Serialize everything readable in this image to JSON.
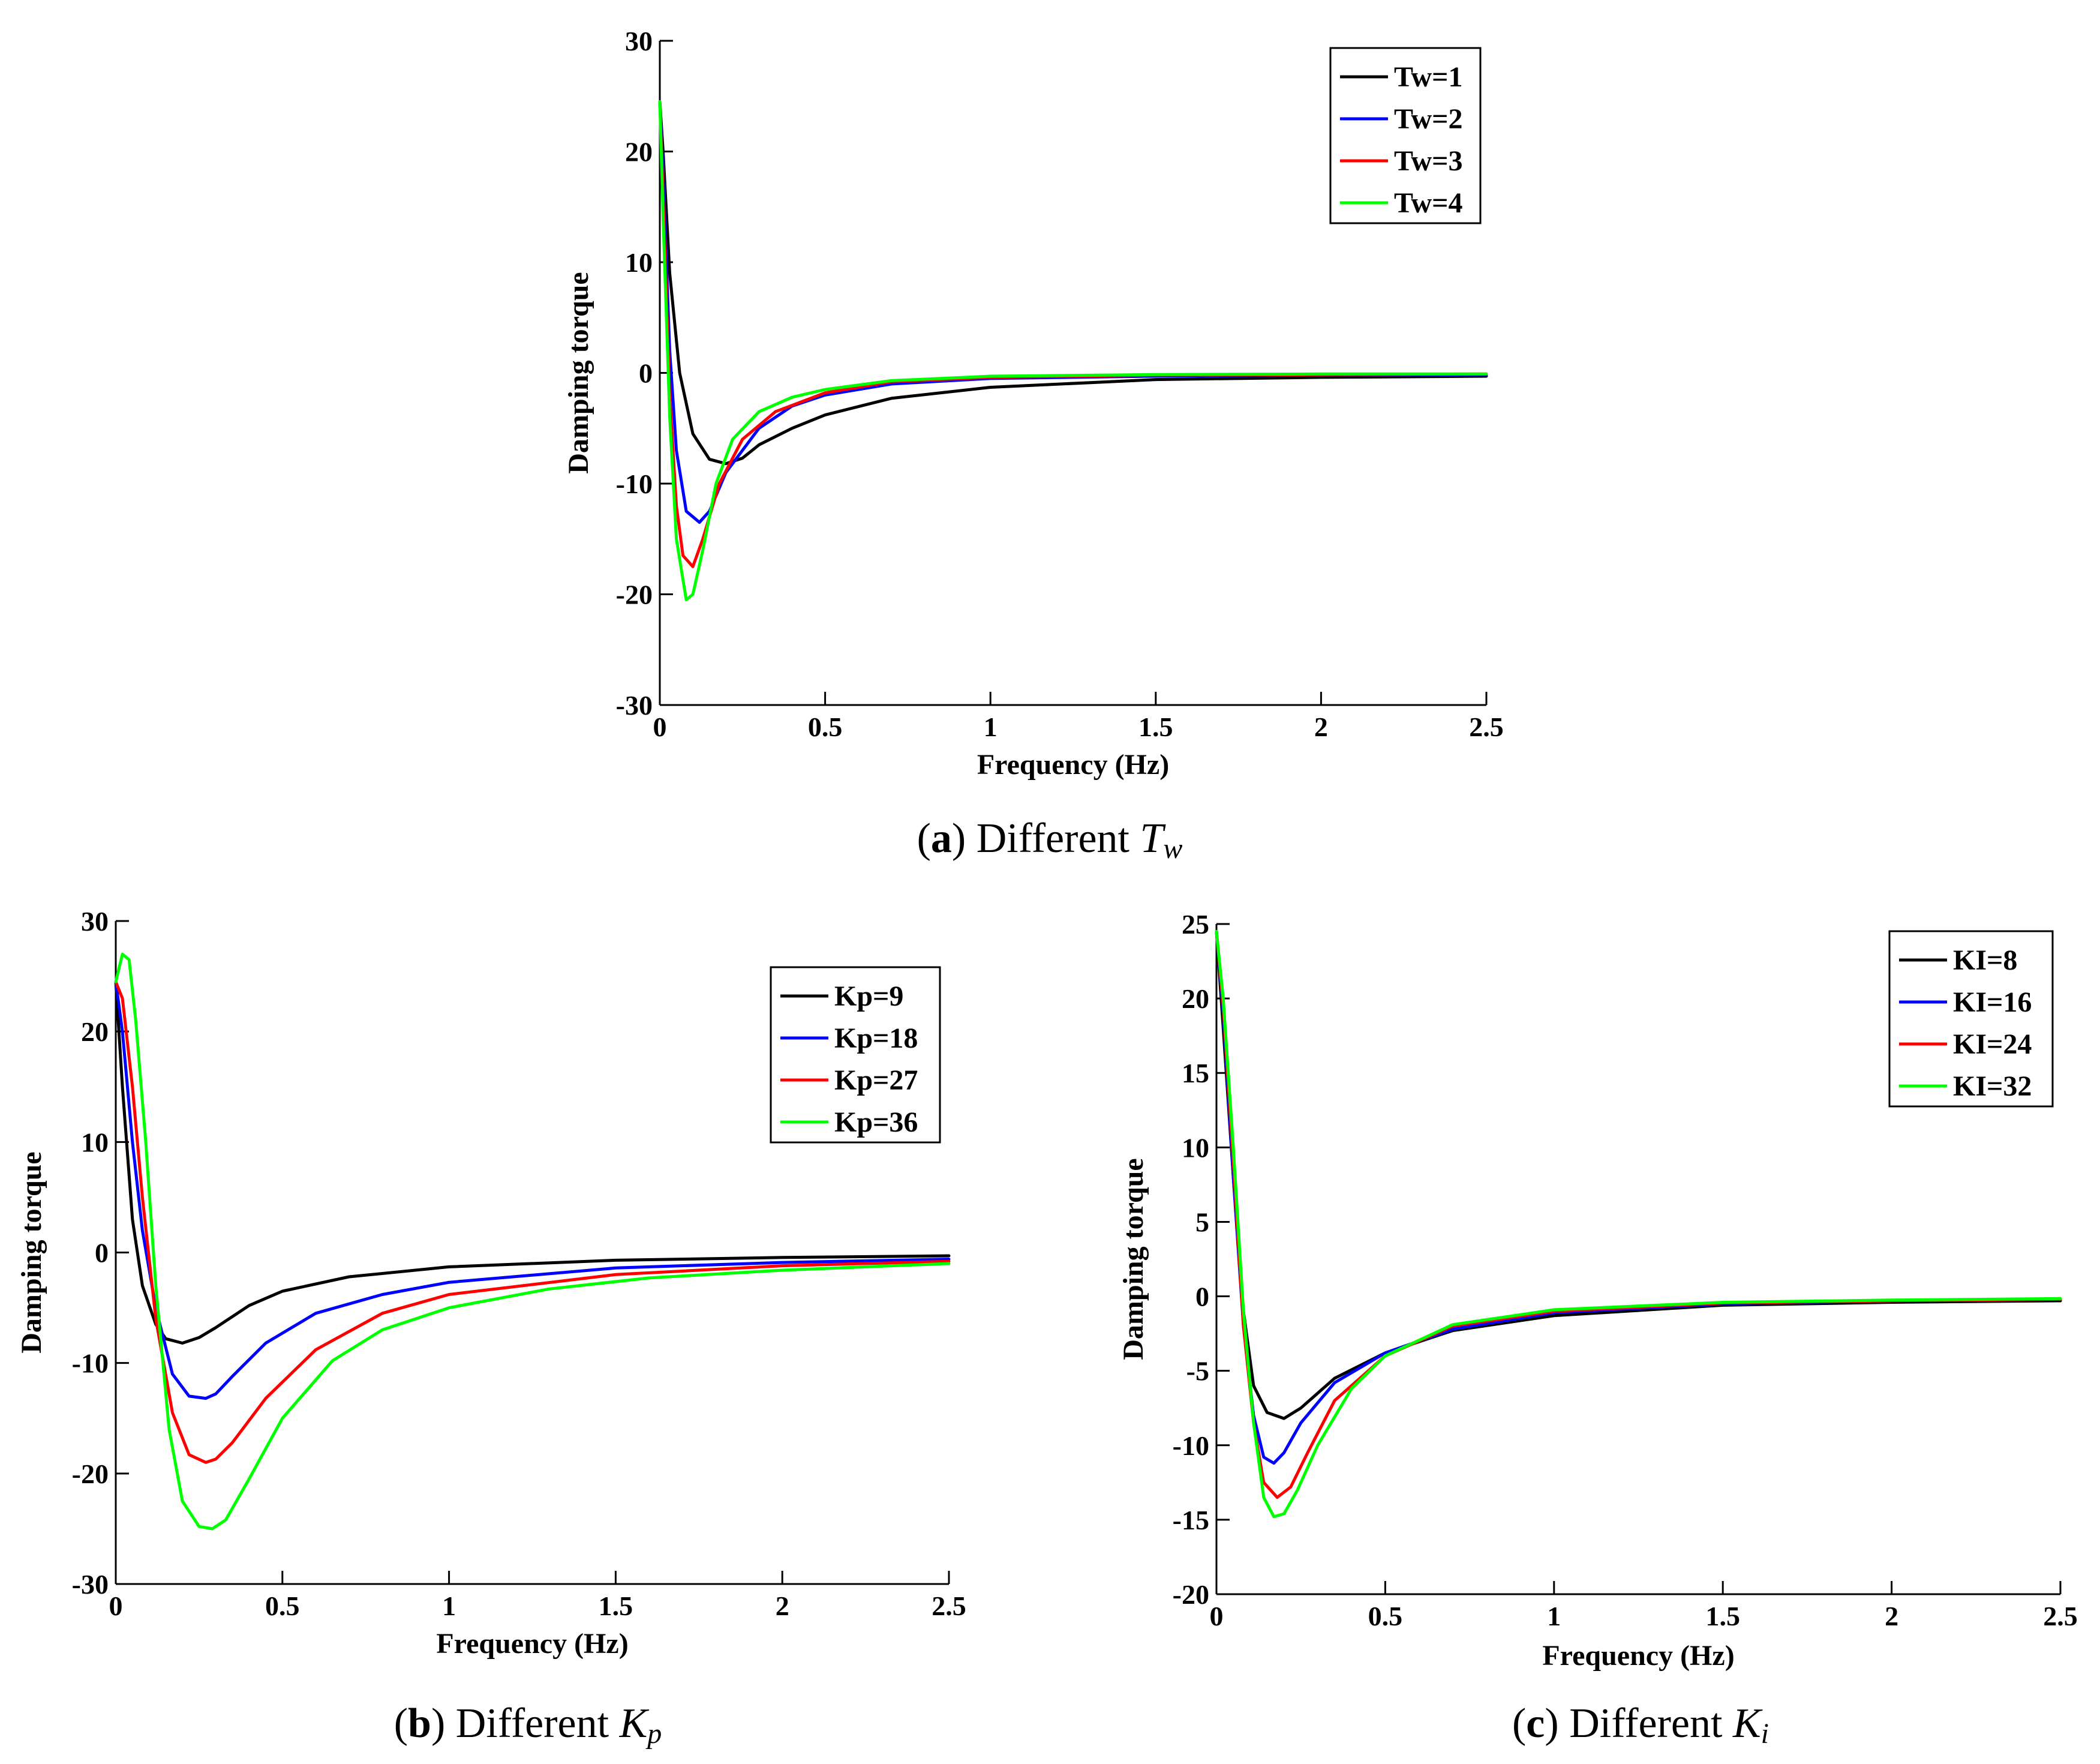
{
  "chart_data": [
    {
      "type": "line",
      "panel": "a",
      "caption": {
        "letter": "a",
        "text": "Different",
        "symbol": "T",
        "sub": "w"
      },
      "xlabel": "Frequency (Hz)",
      "ylabel": "Damping torque",
      "xlim": [
        0,
        2.5
      ],
      "ylim": [
        -30,
        30
      ],
      "xticks": [
        "0",
        "0.5",
        "1",
        "1.5",
        "2",
        "2.5"
      ],
      "yticks": [
        "30",
        "20",
        "10",
        "0",
        "-10",
        "-20",
        "-30"
      ],
      "legend_position": "top-right",
      "series": [
        {
          "name": "Tw=1",
          "color": "#000000",
          "x": [
            0.0,
            0.01,
            0.03,
            0.06,
            0.1,
            0.15,
            0.2,
            0.25,
            0.3,
            0.4,
            0.5,
            0.7,
            1.0,
            1.5,
            2.0,
            2.5
          ],
          "y": [
            24.5,
            20,
            9,
            0,
            -5.5,
            -7.8,
            -8.2,
            -7.7,
            -6.5,
            -5,
            -3.8,
            -2.3,
            -1.3,
            -0.6,
            -0.4,
            -0.3
          ]
        },
        {
          "name": "Tw=2",
          "color": "#0000ff",
          "x": [
            0.0,
            0.01,
            0.03,
            0.05,
            0.08,
            0.12,
            0.15,
            0.2,
            0.3,
            0.4,
            0.5,
            0.7,
            1.0,
            1.5,
            2.0,
            2.5
          ],
          "y": [
            24.5,
            18,
            2,
            -7,
            -12.5,
            -13.5,
            -12.5,
            -9,
            -5,
            -3,
            -2,
            -1,
            -0.5,
            -0.3,
            -0.2,
            -0.15
          ]
        },
        {
          "name": "Tw=3",
          "color": "#ff0000",
          "x": [
            0.0,
            0.01,
            0.03,
            0.05,
            0.07,
            0.1,
            0.13,
            0.18,
            0.25,
            0.35,
            0.5,
            0.7,
            1.0,
            1.5,
            2.0,
            2.5
          ],
          "y": [
            24.5,
            16,
            -2,
            -12,
            -16.5,
            -17.5,
            -15,
            -10,
            -6,
            -3.5,
            -1.8,
            -0.8,
            -0.4,
            -0.2,
            -0.15,
            -0.1
          ]
        },
        {
          "name": "Tw=4",
          "color": "#00ff00",
          "x": [
            0.0,
            0.01,
            0.03,
            0.05,
            0.08,
            0.1,
            0.13,
            0.17,
            0.22,
            0.3,
            0.4,
            0.5,
            0.7,
            1.0,
            1.5,
            2.0,
            2.5
          ],
          "y": [
            24.5,
            14,
            -4,
            -15,
            -20.5,
            -20,
            -16,
            -10,
            -6,
            -3.5,
            -2.2,
            -1.5,
            -0.7,
            -0.3,
            -0.15,
            -0.1,
            -0.1
          ]
        }
      ]
    },
    {
      "type": "line",
      "panel": "b",
      "caption": {
        "letter": "b",
        "text": "Different",
        "symbol": "K",
        "sub": "p"
      },
      "xlabel": "Frequency (Hz)",
      "ylabel": "Damping torque",
      "xlim": [
        0,
        2.5
      ],
      "ylim": [
        -30,
        30
      ],
      "xticks": [
        "0",
        "0.5",
        "1",
        "1.5",
        "2",
        "2.5"
      ],
      "yticks": [
        "30",
        "20",
        "10",
        "0",
        "-10",
        "-20",
        "-30"
      ],
      "legend_position": "top-right",
      "series": [
        {
          "name": "Kp=9",
          "color": "#000000",
          "x": [
            0.0,
            0.02,
            0.05,
            0.08,
            0.12,
            0.15,
            0.2,
            0.25,
            0.3,
            0.4,
            0.5,
            0.7,
            1.0,
            1.5,
            2.0,
            2.5
          ],
          "y": [
            24.5,
            15,
            3,
            -3,
            -6.5,
            -7.8,
            -8.2,
            -7.7,
            -6.8,
            -4.8,
            -3.5,
            -2.2,
            -1.3,
            -0.7,
            -0.45,
            -0.3
          ]
        },
        {
          "name": "Kp=18",
          "color": "#0000ff",
          "x": [
            0.0,
            0.02,
            0.05,
            0.08,
            0.12,
            0.17,
            0.22,
            0.27,
            0.3,
            0.35,
            0.45,
            0.6,
            0.8,
            1.0,
            1.5,
            2.0,
            2.5
          ],
          "y": [
            24.5,
            20,
            10,
            2,
            -5,
            -11,
            -13,
            -13.2,
            -12.8,
            -11.2,
            -8.2,
            -5.5,
            -3.8,
            -2.7,
            -1.4,
            -0.9,
            -0.6
          ]
        },
        {
          "name": "Kp=27",
          "color": "#ff0000",
          "x": [
            0.0,
            0.02,
            0.05,
            0.08,
            0.12,
            0.17,
            0.22,
            0.27,
            0.3,
            0.35,
            0.45,
            0.6,
            0.8,
            1.0,
            1.5,
            2.0,
            2.5
          ],
          "y": [
            24.5,
            23,
            15,
            5,
            -6,
            -14.5,
            -18.3,
            -19,
            -18.7,
            -17.2,
            -13.2,
            -8.8,
            -5.5,
            -3.8,
            -2,
            -1.2,
            -0.8
          ]
        },
        {
          "name": "Kp=36",
          "color": "#00ff00",
          "x": [
            0.0,
            0.02,
            0.04,
            0.06,
            0.09,
            0.12,
            0.16,
            0.2,
            0.25,
            0.29,
            0.33,
            0.4,
            0.5,
            0.65,
            0.8,
            1.0,
            1.3,
            1.6,
            2.0,
            2.5
          ],
          "y": [
            24.5,
            27,
            26.5,
            21,
            10,
            -3,
            -16,
            -22.5,
            -24.8,
            -25,
            -24.2,
            -20.5,
            -15,
            -9.8,
            -7,
            -5,
            -3.3,
            -2.3,
            -1.6,
            -1
          ]
        }
      ]
    },
    {
      "type": "line",
      "panel": "c",
      "caption": {
        "letter": "c",
        "text": "Different",
        "symbol": "K",
        "sub": "i"
      },
      "xlabel": "Frequency (Hz)",
      "ylabel": "Damping torque",
      "xlim": [
        0,
        2.5
      ],
      "ylim": [
        -20,
        25
      ],
      "xticks": [
        "0",
        "0.5",
        "1",
        "1.5",
        "2",
        "2.5"
      ],
      "yticks": [
        "25",
        "20",
        "15",
        "10",
        "5",
        "0",
        "-5",
        "-10",
        "-15",
        "-20"
      ],
      "legend_position": "top-right",
      "series": [
        {
          "name": "KI=8",
          "color": "#000000",
          "x": [
            0.0,
            0.02,
            0.05,
            0.08,
            0.11,
            0.15,
            0.2,
            0.25,
            0.35,
            0.5,
            0.7,
            1.0,
            1.5,
            2.0,
            2.5
          ],
          "y": [
            24.5,
            18,
            8,
            -1,
            -6,
            -7.8,
            -8.2,
            -7.5,
            -5.5,
            -3.8,
            -2.3,
            -1.3,
            -0.6,
            -0.4,
            -0.3
          ]
        },
        {
          "name": "KI=16",
          "color": "#0000ff",
          "x": [
            0.0,
            0.02,
            0.05,
            0.08,
            0.11,
            0.14,
            0.17,
            0.2,
            0.25,
            0.35,
            0.5,
            0.7,
            1.0,
            1.5,
            2.0,
            2.5
          ],
          "y": [
            24.5,
            19,
            8,
            -2,
            -8,
            -10.8,
            -11.2,
            -10.5,
            -8.5,
            -5.8,
            -3.8,
            -2.2,
            -1.1,
            -0.5,
            -0.3,
            -0.2
          ]
        },
        {
          "name": "KI=24",
          "color": "#ff0000",
          "x": [
            0.0,
            0.02,
            0.05,
            0.08,
            0.11,
            0.14,
            0.18,
            0.22,
            0.27,
            0.35,
            0.5,
            0.7,
            1.0,
            1.5,
            2.0,
            2.5
          ],
          "y": [
            24.5,
            19.5,
            9,
            -2,
            -8.5,
            -12.5,
            -13.5,
            -12.8,
            -10.5,
            -7,
            -4,
            -2,
            -1,
            -0.45,
            -0.3,
            -0.2
          ]
        },
        {
          "name": "KI=32",
          "color": "#00ff00",
          "x": [
            0.0,
            0.02,
            0.05,
            0.08,
            0.11,
            0.14,
            0.17,
            0.2,
            0.24,
            0.3,
            0.4,
            0.5,
            0.7,
            1.0,
            1.5,
            2.0,
            2.5
          ],
          "y": [
            24.5,
            20,
            10,
            -1,
            -8.5,
            -13.5,
            -14.8,
            -14.6,
            -13,
            -10,
            -6.2,
            -4,
            -1.9,
            -0.9,
            -0.4,
            -0.25,
            -0.15
          ]
        }
      ]
    }
  ]
}
